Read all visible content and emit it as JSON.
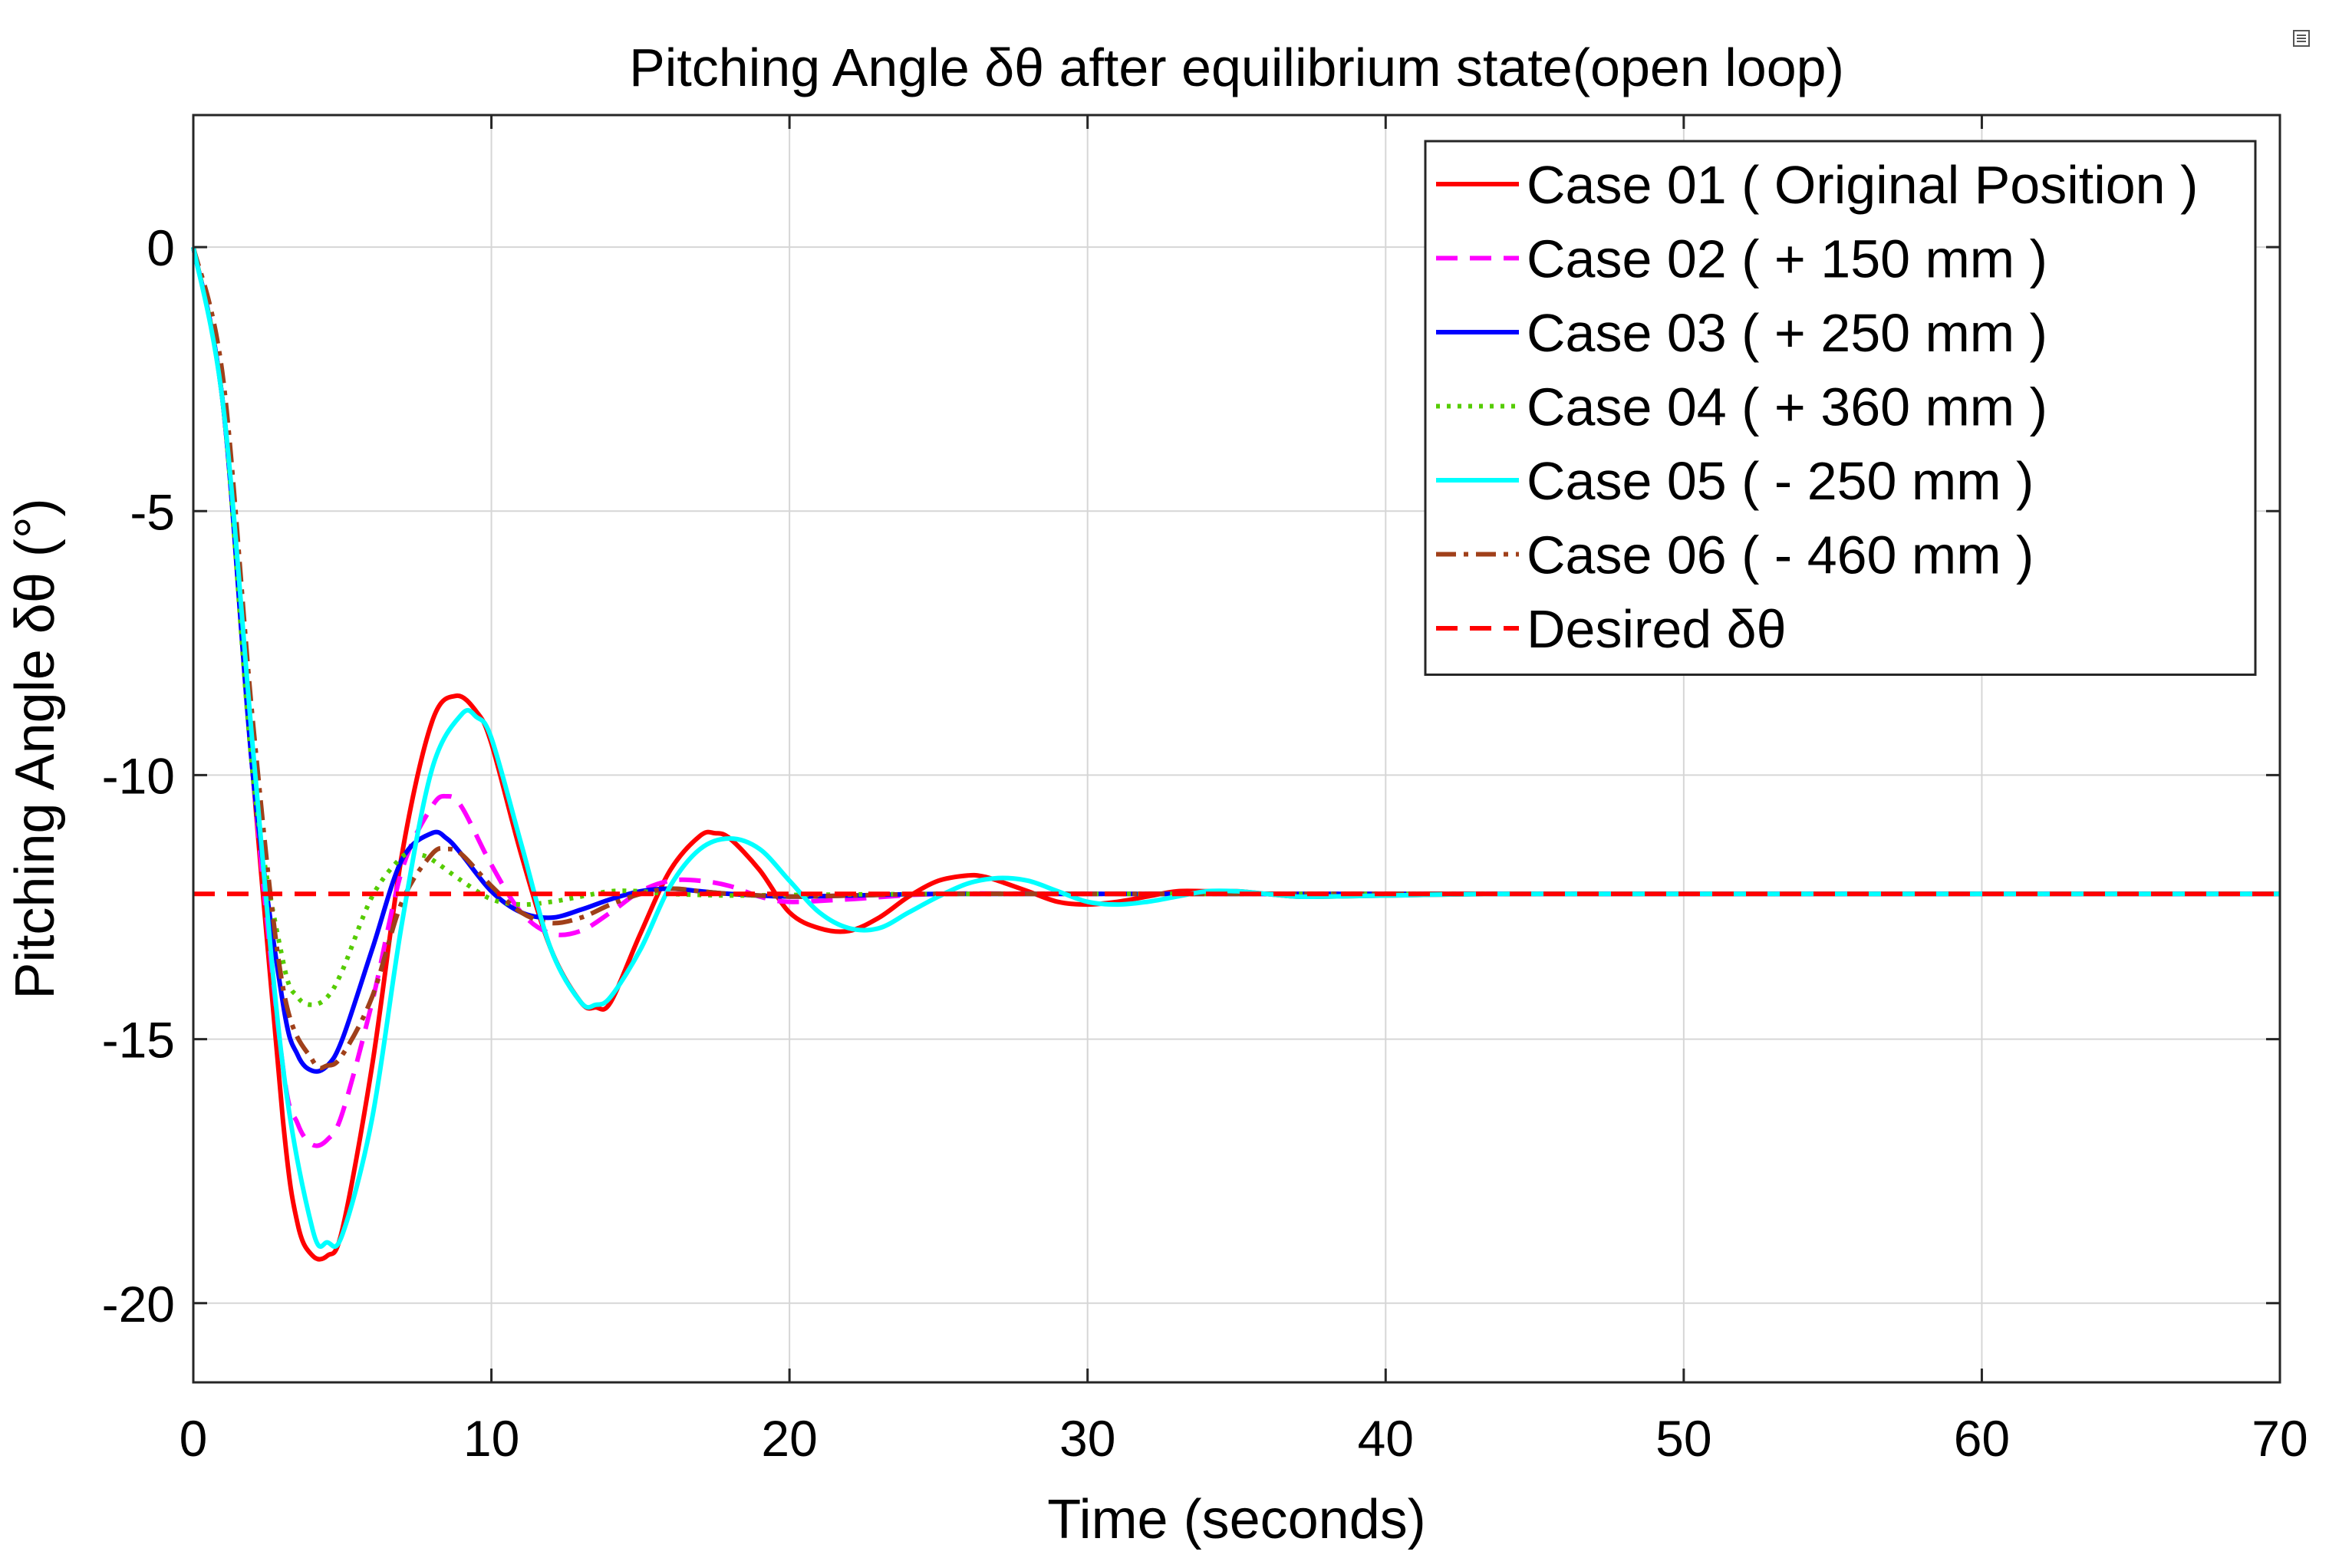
{
  "chart_data": {
    "type": "line",
    "title": "Pitching Angle δθ after equilibrium state(open loop)",
    "xlabel": "Time (seconds)",
    "ylabel": "Pitching Angle δθ (°)",
    "xlim": [
      0,
      70
    ],
    "ylim": [
      -21.5,
      2.5
    ],
    "xticks": [
      0,
      10,
      20,
      30,
      40,
      50,
      60,
      70
    ],
    "xtick_labels": [
      "0",
      "10",
      "20",
      "30",
      "40",
      "50",
      "60",
      "70"
    ],
    "yticks": [
      0,
      -5,
      -10,
      -15,
      -20
    ],
    "ytick_labels": [
      "0",
      "-5",
      "-10",
      "-15",
      "-20"
    ],
    "grid": true,
    "legend_position": "top-right",
    "series": [
      {
        "name": "Case 01 ( Original Position )",
        "color": "#ff0000",
        "style": "solid",
        "x": [
          0,
          1,
          2,
          3,
          3.5,
          4,
          4.5,
          5,
          6,
          7,
          8,
          8.8,
          9.5,
          10,
          11,
          12,
          13,
          13.5,
          14,
          15,
          16,
          17,
          17.5,
          18,
          19,
          20,
          21,
          22,
          23,
          24,
          25,
          26,
          26.5,
          27,
          28,
          29,
          30,
          31,
          32,
          33,
          34,
          35,
          36,
          37,
          38,
          40,
          44,
          50,
          60,
          70
        ],
        "values": [
          0,
          -3,
          -10,
          -16.5,
          -18.5,
          -19.1,
          -19.1,
          -18.6,
          -15.5,
          -11.5,
          -9.0,
          -8.5,
          -8.8,
          -9.4,
          -11.5,
          -13.3,
          -14.3,
          -14.4,
          -14.3,
          -13.0,
          -11.8,
          -11.15,
          -11.1,
          -11.2,
          -11.8,
          -12.6,
          -12.9,
          -12.95,
          -12.7,
          -12.3,
          -12.0,
          -11.9,
          -11.92,
          -12.0,
          -12.2,
          -12.4,
          -12.45,
          -12.4,
          -12.3,
          -12.2,
          -12.2,
          -12.2,
          -12.25,
          -12.3,
          -12.3,
          -12.28,
          -12.25,
          -12.25,
          -12.25,
          -12.25
        ]
      },
      {
        "name": "Case 02 ( + 150 mm )",
        "color": "#ff00ff",
        "style": "dash",
        "x": [
          0,
          1,
          2,
          3,
          3.5,
          4,
          4.5,
          5,
          6,
          7,
          8,
          8.5,
          9,
          10,
          11,
          12,
          13,
          14,
          15,
          16,
          17,
          18,
          19,
          20,
          22,
          25,
          30,
          40,
          50,
          60,
          70
        ],
        "values": [
          0,
          -3,
          -10,
          -15.5,
          -16.6,
          -17.0,
          -16.9,
          -16.4,
          -14.3,
          -11.8,
          -10.6,
          -10.4,
          -10.6,
          -11.7,
          -12.6,
          -13.0,
          -12.95,
          -12.6,
          -12.2,
          -12.0,
          -12.0,
          -12.1,
          -12.3,
          -12.4,
          -12.35,
          -12.25,
          -12.25,
          -12.25,
          -12.25,
          -12.25,
          -12.25
        ]
      },
      {
        "name": "Case 03 ( + 250 mm )",
        "color": "#0000ff",
        "style": "solid",
        "x": [
          0,
          1,
          2,
          3,
          3.5,
          4,
          4.5,
          5,
          6,
          7,
          8,
          8.5,
          9,
          10,
          11,
          12,
          13,
          14,
          15,
          16,
          17,
          18,
          20,
          22,
          25,
          30,
          40,
          50,
          60,
          70
        ],
        "values": [
          0,
          -3,
          -10,
          -14.3,
          -15.3,
          -15.6,
          -15.5,
          -15.0,
          -13.3,
          -11.6,
          -11.1,
          -11.2,
          -11.5,
          -12.2,
          -12.6,
          -12.7,
          -12.55,
          -12.35,
          -12.2,
          -12.15,
          -12.2,
          -12.25,
          -12.3,
          -12.28,
          -12.25,
          -12.25,
          -12.25,
          -12.25,
          -12.25,
          -12.25
        ]
      },
      {
        "name": "Case 04 ( + 360 mm )",
        "color": "#55cc00",
        "style": "dot",
        "x": [
          0,
          1,
          2,
          3,
          3.5,
          4,
          4.5,
          5,
          6,
          7,
          7.5,
          8,
          9,
          10,
          11,
          12,
          13,
          14,
          15,
          16,
          18,
          20,
          25,
          30,
          40,
          50,
          60,
          70
        ],
        "values": [
          0,
          -3,
          -10,
          -13.5,
          -14.2,
          -14.35,
          -14.2,
          -13.7,
          -12.3,
          -11.55,
          -11.5,
          -11.6,
          -12.0,
          -12.35,
          -12.45,
          -12.4,
          -12.3,
          -12.2,
          -12.2,
          -12.25,
          -12.28,
          -12.27,
          -12.25,
          -12.25,
          -12.25,
          -12.25,
          -12.25,
          -12.25
        ]
      },
      {
        "name": "Case 05 ( - 250 mm )",
        "color": "#00ffff",
        "style": "solid",
        "x": [
          0,
          1,
          2,
          3,
          4,
          4.5,
          5,
          6,
          7,
          8,
          9,
          9.5,
          10,
          11,
          12,
          13,
          13.5,
          14,
          15,
          16,
          17,
          18,
          19,
          20,
          21,
          22,
          23,
          24,
          25,
          26,
          27,
          28,
          29,
          30,
          31,
          32,
          33,
          34,
          35,
          36,
          37,
          38,
          40,
          44,
          50,
          60,
          70
        ],
        "values": [
          0,
          -3,
          -9.5,
          -15.5,
          -18.6,
          -18.85,
          -18.7,
          -16.5,
          -12.8,
          -9.9,
          -8.85,
          -8.9,
          -9.3,
          -11.3,
          -13.3,
          -14.3,
          -14.35,
          -14.2,
          -13.3,
          -12.1,
          -11.4,
          -11.2,
          -11.4,
          -12.0,
          -12.6,
          -12.9,
          -12.9,
          -12.6,
          -12.3,
          -12.05,
          -11.95,
          -12.0,
          -12.2,
          -12.4,
          -12.45,
          -12.4,
          -12.3,
          -12.2,
          -12.2,
          -12.25,
          -12.3,
          -12.3,
          -12.28,
          -12.25,
          -12.25,
          -12.25,
          -12.25
        ]
      },
      {
        "name": "Case 06 ( - 460 mm )",
        "color": "#a0401a",
        "style": "dashdot",
        "x": [
          0,
          1,
          2,
          3,
          4,
          4.5,
          5,
          6,
          7,
          8,
          8.5,
          9,
          10,
          11,
          12,
          13,
          14,
          15,
          16,
          17,
          18,
          20,
          22,
          25,
          30,
          40,
          50,
          60,
          70
        ],
        "values": [
          0,
          -2.5,
          -9,
          -14.0,
          -15.4,
          -15.5,
          -15.3,
          -14.2,
          -12.4,
          -11.5,
          -11.4,
          -11.5,
          -12.1,
          -12.6,
          -12.8,
          -12.7,
          -12.45,
          -12.25,
          -12.15,
          -12.2,
          -12.25,
          -12.3,
          -12.28,
          -12.25,
          -12.25,
          -12.25,
          -12.25,
          -12.25,
          -12.25
        ]
      },
      {
        "name": "Desired δθ",
        "color": "#ff0000",
        "style": "dash",
        "x": [
          0,
          70
        ],
        "values": [
          -12.25,
          -12.25
        ]
      }
    ]
  }
}
